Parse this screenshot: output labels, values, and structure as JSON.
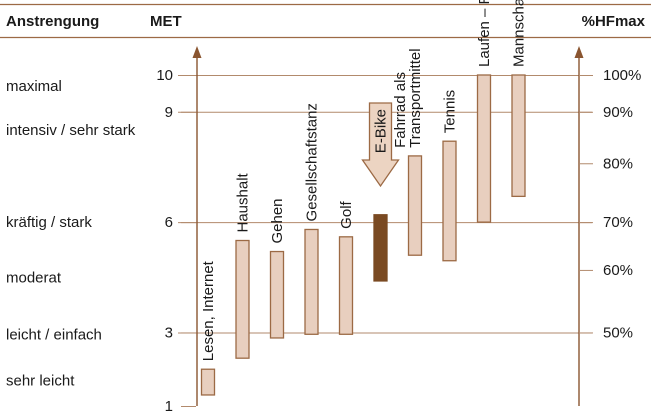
{
  "chart_data": {
    "type": "bar",
    "subtype": "floating-range",
    "headers": {
      "effort": "Anstrengung",
      "met": "MET",
      "hfmax": "%HFmax"
    },
    "effort_levels": [
      {
        "label": "maximal",
        "met": 9.7
      },
      {
        "label": "intensiv / sehr stark",
        "met": 8.5
      },
      {
        "label": "kräftig / stark",
        "met": 6
      },
      {
        "label": "moderat",
        "met": 4.5
      },
      {
        "label": "leicht / einfach",
        "met": 2.95
      },
      {
        "label": "sehr leicht",
        "met": 1.7
      }
    ],
    "met_ticks": [
      {
        "label": "10",
        "value": 10
      },
      {
        "label": "9",
        "value": 9
      },
      {
        "label": "6",
        "value": 6
      },
      {
        "label": "3",
        "value": 3
      },
      {
        "label": "1",
        "value": 1
      }
    ],
    "hfmax_ticks": [
      {
        "label": "100%",
        "met": 10
      },
      {
        "label": "90%",
        "met": 9
      },
      {
        "label": "80%",
        "met": 7.6
      },
      {
        "label": "70%",
        "met": 6
      },
      {
        "label": "60%",
        "met": 4.7
      },
      {
        "label": "50%",
        "met": 3
      }
    ],
    "ylim": [
      1,
      10
    ],
    "activities": [
      {
        "label": "Lesen, Internet",
        "lines": [
          "Lesen, Internet"
        ],
        "low": 1.3,
        "high": 2.0,
        "highlight": false
      },
      {
        "label": "Haushalt",
        "lines": [
          "Haushalt"
        ],
        "low": 2.3,
        "high": 5.5,
        "highlight": false
      },
      {
        "label": "Gehen",
        "lines": [
          "Gehen"
        ],
        "low": 2.85,
        "high": 5.2,
        "highlight": false
      },
      {
        "label": "Gesellschaftstanz",
        "lines": [
          "Gesellschaftstanz"
        ],
        "low": 2.95,
        "high": 5.8,
        "highlight": false
      },
      {
        "label": "Golf",
        "lines": [
          "Golf"
        ],
        "low": 2.95,
        "high": 5.6,
        "highlight": false
      },
      {
        "label": "E-Bike",
        "lines": [
          "E-Bike"
        ],
        "low": 4.4,
        "high": 6.2,
        "highlight": true
      },
      {
        "label": "Fahrrad als Transportmittel",
        "lines": [
          "Fahrrad als",
          "Transportmittel"
        ],
        "low": 5.1,
        "high": 7.8,
        "highlight": false
      },
      {
        "label": "Tennis",
        "lines": [
          "Tennis"
        ],
        "low": 4.95,
        "high": 8.2,
        "highlight": false
      },
      {
        "label": "Laufen – Rennen",
        "lines": [
          "Laufen – Rennen"
        ],
        "low": 6.0,
        "high": 10,
        "highlight": false
      },
      {
        "label": "Mannschaftssport",
        "lines": [
          "Mannschaftssport"
        ],
        "low": 6.7,
        "high": 10,
        "highlight": false
      }
    ],
    "gridlines_at": [
      10,
      9,
      6,
      3
    ],
    "colors": {
      "bar_fill": "#e8cfbf",
      "bar_stroke": "#9c6a45",
      "highlight_fill": "#7a4a22",
      "axis": "#8a5530",
      "grid": "#b28a6c",
      "rule": "#9c6a45",
      "arrow_fill": "#ecd4c2"
    }
  }
}
